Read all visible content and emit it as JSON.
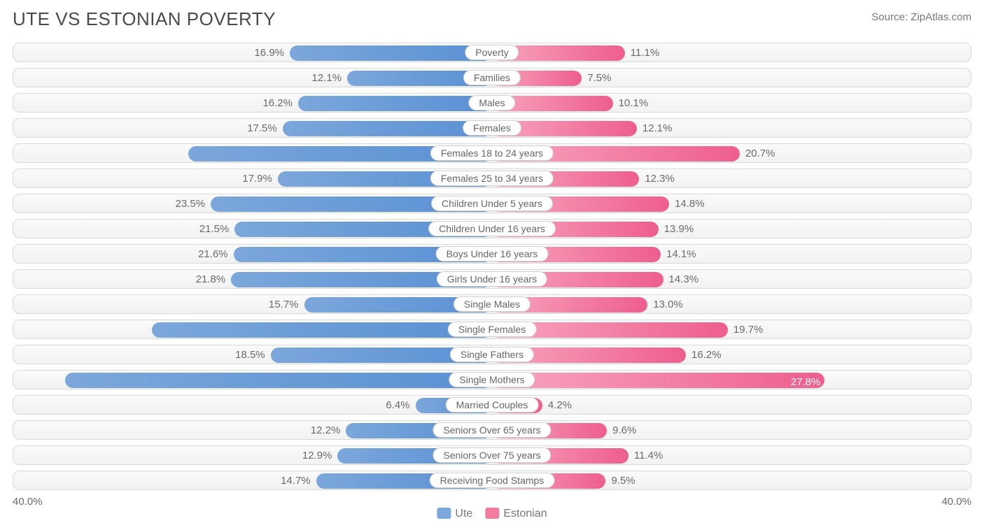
{
  "title": "UTE VS ESTONIAN POVERTY",
  "source_label": "Source: ",
  "source_name": "ZipAtlas.com",
  "axis_max": 40.0,
  "axis_label_left": "40.0%",
  "axis_label_right": "40.0%",
  "pct_inside_threshold": 25.0,
  "legend": [
    {
      "label": "Ute",
      "color": "#7ba7db"
    },
    {
      "label": "Estonian",
      "color": "#f37ba0"
    }
  ],
  "colors": {
    "left_start": "#7ba7db",
    "left_end": "#5a90d4",
    "right_start": "#f8a6bf",
    "right_end": "#ee5e8f"
  },
  "rows": [
    {
      "category": "Poverty",
      "left_val": 16.9,
      "right_val": 11.1
    },
    {
      "category": "Families",
      "left_val": 12.1,
      "right_val": 7.5
    },
    {
      "category": "Males",
      "left_val": 16.2,
      "right_val": 10.1
    },
    {
      "category": "Females",
      "left_val": 17.5,
      "right_val": 12.1
    },
    {
      "category": "Females 18 to 24 years",
      "left_val": 25.4,
      "right_val": 20.7
    },
    {
      "category": "Females 25 to 34 years",
      "left_val": 17.9,
      "right_val": 12.3
    },
    {
      "category": "Children Under 5 years",
      "left_val": 23.5,
      "right_val": 14.8
    },
    {
      "category": "Children Under 16 years",
      "left_val": 21.5,
      "right_val": 13.9
    },
    {
      "category": "Boys Under 16 years",
      "left_val": 21.6,
      "right_val": 14.1
    },
    {
      "category": "Girls Under 16 years",
      "left_val": 21.8,
      "right_val": 14.3
    },
    {
      "category": "Single Males",
      "left_val": 15.7,
      "right_val": 13.0
    },
    {
      "category": "Single Females",
      "left_val": 28.4,
      "right_val": 19.7
    },
    {
      "category": "Single Fathers",
      "left_val": 18.5,
      "right_val": 16.2
    },
    {
      "category": "Single Mothers",
      "left_val": 35.7,
      "right_val": 27.8
    },
    {
      "category": "Married Couples",
      "left_val": 6.4,
      "right_val": 4.2
    },
    {
      "category": "Seniors Over 65 years",
      "left_val": 12.2,
      "right_val": 9.6
    },
    {
      "category": "Seniors Over 75 years",
      "left_val": 12.9,
      "right_val": 11.4
    },
    {
      "category": "Receiving Food Stamps",
      "left_val": 14.7,
      "right_val": 9.5
    }
  ]
}
